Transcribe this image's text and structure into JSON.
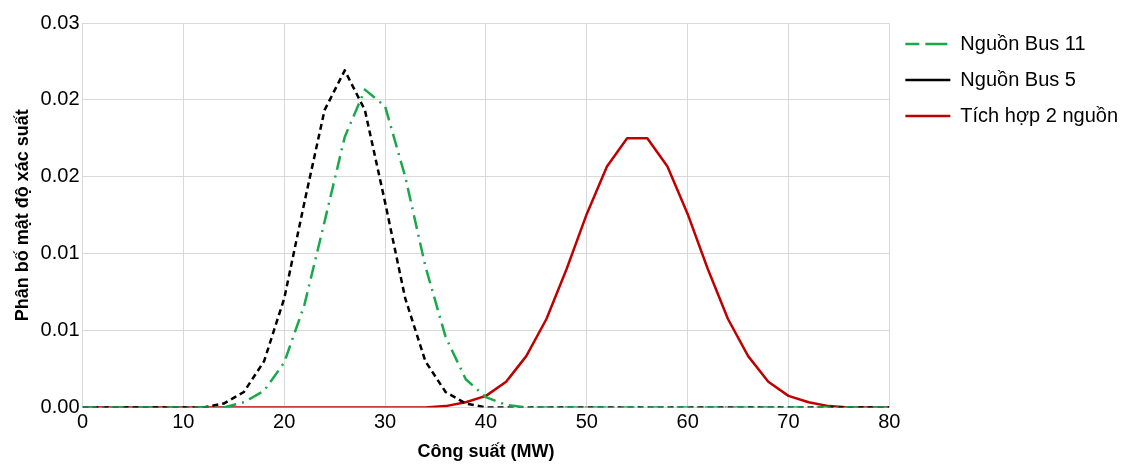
{
  "chart_data": {
    "type": "line",
    "xlabel": "Công suất (MW)",
    "ylabel": "Phân bố mật độ xác suất",
    "x": [
      0,
      2,
      4,
      6,
      8,
      10,
      12,
      14,
      16,
      18,
      20,
      22,
      24,
      26,
      28,
      30,
      32,
      34,
      36,
      38,
      40,
      42,
      44,
      46,
      48,
      50,
      52,
      54,
      56,
      58,
      60,
      62,
      64,
      66,
      68,
      70,
      72,
      74,
      76,
      78,
      80
    ],
    "series": [
      {
        "name": "Nguồn Bus 11",
        "color": "#1aa84a",
        "line_style": "dashdot",
        "values": [
          0,
          0,
          0,
          0,
          0,
          0,
          0,
          0,
          0.0004,
          0.0013,
          0.0035,
          0.008,
          0.0145,
          0.0211,
          0.0248,
          0.0235,
          0.018,
          0.011,
          0.0055,
          0.0022,
          0.0008,
          0.0002,
          0,
          0,
          0,
          0,
          0,
          0,
          0,
          0,
          0,
          0,
          0,
          0,
          0,
          0,
          0,
          0,
          0,
          0,
          0
        ]
      },
      {
        "name": "Nguồn Bus 5",
        "color": "#000000",
        "line_style": "dashed",
        "values": [
          0,
          0,
          0,
          0,
          0,
          0,
          0,
          0.0003,
          0.0012,
          0.0036,
          0.0085,
          0.016,
          0.0232,
          0.0263,
          0.0232,
          0.016,
          0.0085,
          0.0036,
          0.0012,
          0.0003,
          0,
          0,
          0,
          0,
          0,
          0,
          0,
          0,
          0,
          0,
          0,
          0,
          0,
          0,
          0,
          0,
          0,
          0,
          0,
          0,
          0
        ]
      },
      {
        "name": "Tích hợp 2 nguồn",
        "color": "#c00000",
        "line_style": "solid",
        "values": [
          0,
          0,
          0,
          0,
          0,
          0,
          0,
          0,
          0,
          0,
          0,
          0,
          0,
          0,
          0,
          0,
          0,
          0,
          0.0001,
          0.0004,
          0.0009,
          0.002,
          0.004,
          0.0069,
          0.0108,
          0.0151,
          0.0188,
          0.021,
          0.021,
          0.0188,
          0.0151,
          0.0108,
          0.0069,
          0.004,
          0.002,
          0.0009,
          0.0004,
          0.0001,
          0,
          0,
          0
        ]
      }
    ],
    "xlim": [
      0,
      80
    ],
    "xticks": [
      0,
      10,
      20,
      30,
      40,
      50,
      60,
      70,
      80
    ],
    "ylim": [
      0,
      0.03
    ],
    "yticks": [
      {
        "value": 0,
        "label": "0.00"
      },
      {
        "value": 0.006,
        "label": "0.01"
      },
      {
        "value": 0.012,
        "label": "0.01"
      },
      {
        "value": 0.018,
        "label": "0.02"
      },
      {
        "value": 0.024,
        "label": "0.02"
      },
      0.03
    ],
    "grid": true,
    "legend": "top right",
    "marker": "none"
  }
}
